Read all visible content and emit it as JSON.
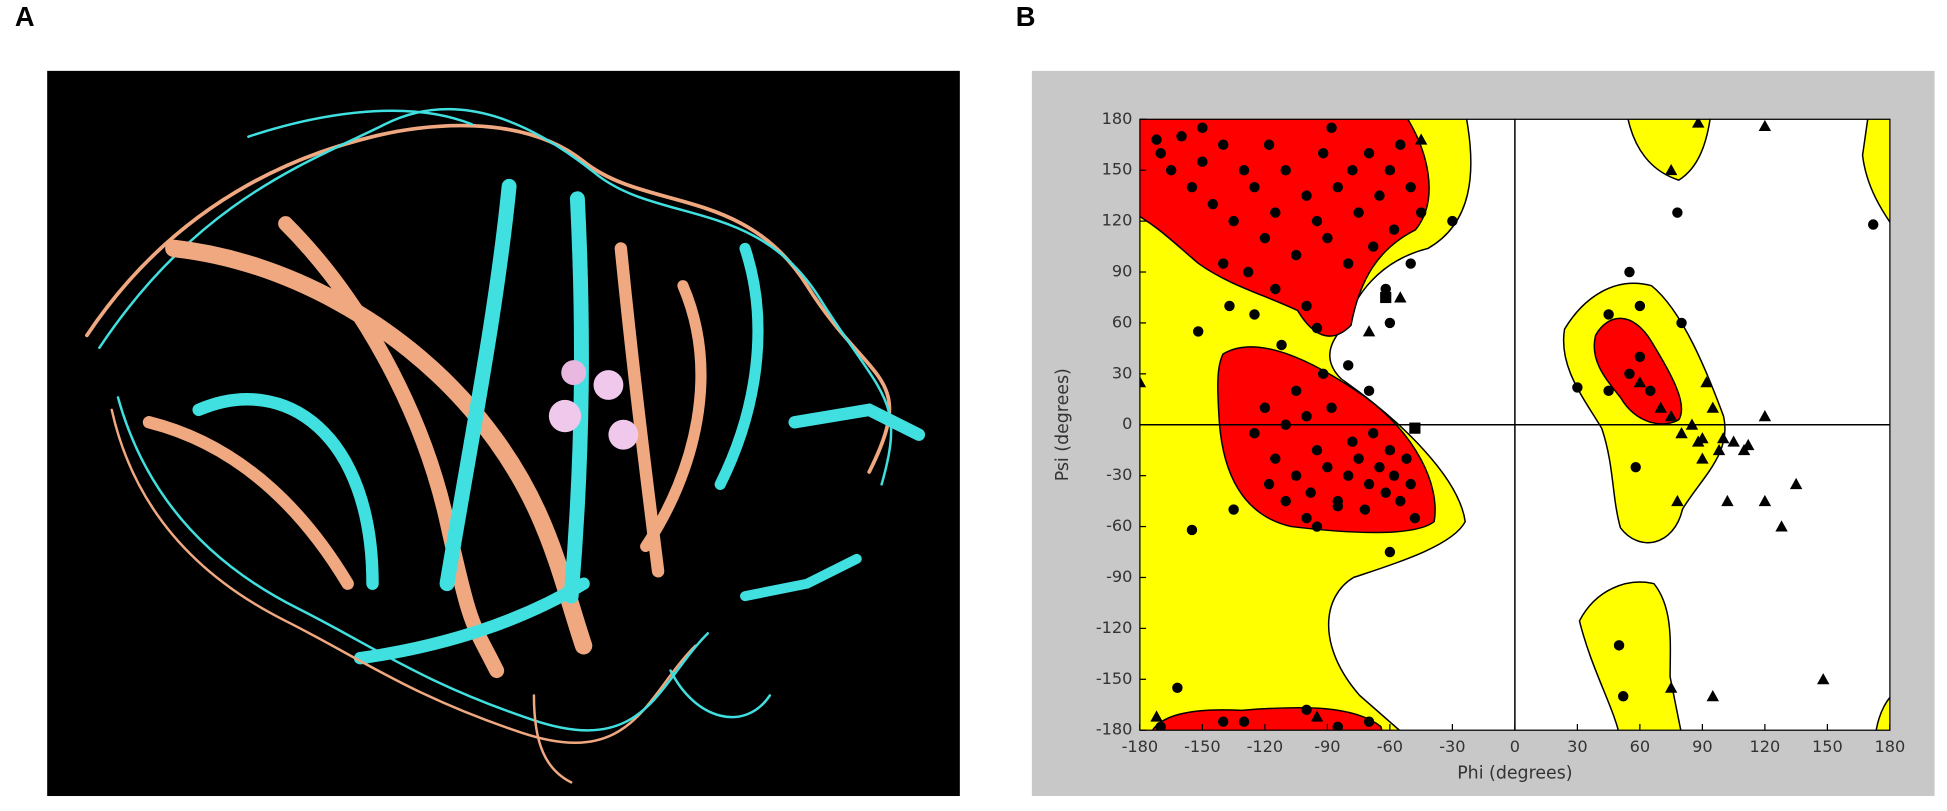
{
  "panel_labels": [
    "A",
    "B"
  ],
  "chart_data": {
    "type": "scatter",
    "xlabel": "Phi (degrees)",
    "ylabel": "Psi (degrees)",
    "xlim": [
      -180,
      180
    ],
    "ylim": [
      -180,
      180
    ],
    "xticks": [
      -180,
      -150,
      -120,
      -90,
      -60,
      -30,
      0,
      30,
      60,
      90,
      120,
      150,
      180
    ],
    "yticks": [
      -180,
      -150,
      -120,
      -90,
      -60,
      -30,
      0,
      30,
      60,
      90,
      120,
      150,
      180
    ],
    "series": [
      {
        "marker": "circle",
        "color": "#000000",
        "x": [
          -170,
          -165,
          -160,
          -155,
          -150,
          -145,
          -140,
          -135,
          -130,
          -125,
          -120,
          -118,
          -115,
          -110,
          -105,
          -100,
          -95,
          -92,
          -90,
          -85,
          -80,
          -78,
          -75,
          -70,
          -68,
          -65,
          -60,
          -58,
          -55,
          -50,
          -45,
          -140,
          -128,
          -115,
          -100,
          -125,
          -137,
          -152,
          -62,
          -60,
          -30,
          -150,
          -88,
          -172,
          -50,
          -125,
          -120,
          -115,
          -110,
          -105,
          -100,
          -98,
          -95,
          -90,
          -88,
          -85,
          -80,
          -78,
          -75,
          -72,
          -70,
          -68,
          -65,
          -62,
          -60,
          -58,
          -55,
          -52,
          -50,
          -48,
          -110,
          -118,
          -100,
          -92,
          -80,
          -70,
          -60,
          -135,
          -155,
          -95,
          -105,
          -162,
          -170,
          -130,
          -100,
          -85,
          -70,
          -140,
          30,
          45,
          55,
          45,
          60,
          60,
          55,
          65,
          50,
          52,
          78,
          172,
          80,
          58,
          -112,
          -95,
          -85
        ],
        "y": [
          160,
          150,
          170,
          140,
          155,
          130,
          165,
          120,
          150,
          140,
          110,
          165,
          125,
          150,
          100,
          135,
          120,
          160,
          110,
          140,
          95,
          150,
          125,
          160,
          105,
          135,
          150,
          115,
          165,
          140,
          125,
          95,
          90,
          80,
          70,
          65,
          70,
          55,
          80,
          60,
          120,
          175,
          175,
          168,
          95,
          -5,
          10,
          -20,
          0,
          -30,
          5,
          -40,
          -15,
          -25,
          10,
          -45,
          -30,
          -10,
          -20,
          -50,
          -35,
          -5,
          -25,
          -40,
          -15,
          -30,
          -45,
          -20,
          -35,
          -55,
          -45,
          -35,
          -55,
          30,
          35,
          20,
          -75,
          -50,
          -62,
          -60,
          20,
          -155,
          -178,
          -175,
          -168,
          -178,
          -175,
          -175,
          22,
          20,
          90,
          65,
          70,
          40,
          30,
          20,
          -130,
          -160,
          125,
          118,
          60,
          -25,
          47,
          57,
          -48
        ]
      },
      {
        "marker": "triangle",
        "color": "#000000",
        "x": [
          -180,
          -45,
          -55,
          -70,
          -172,
          -95,
          88,
          120,
          75,
          60,
          70,
          75,
          80,
          85,
          88,
          92,
          95,
          98,
          100,
          105,
          110,
          112,
          120,
          90,
          135,
          102,
          120,
          128,
          78,
          75,
          95,
          148,
          90
        ],
        "y": [
          25,
          168,
          75,
          55,
          -172,
          -172,
          178,
          176,
          150,
          25,
          10,
          5,
          -5,
          0,
          -10,
          25,
          10,
          -15,
          -8,
          -10,
          -15,
          -12,
          5,
          -20,
          -35,
          -45,
          -45,
          -60,
          -45,
          -155,
          -160,
          -150,
          -8
        ]
      },
      {
        "marker": "square",
        "color": "#000000",
        "x": [
          -62,
          -48
        ],
        "y": [
          75,
          -2
        ]
      }
    ]
  }
}
